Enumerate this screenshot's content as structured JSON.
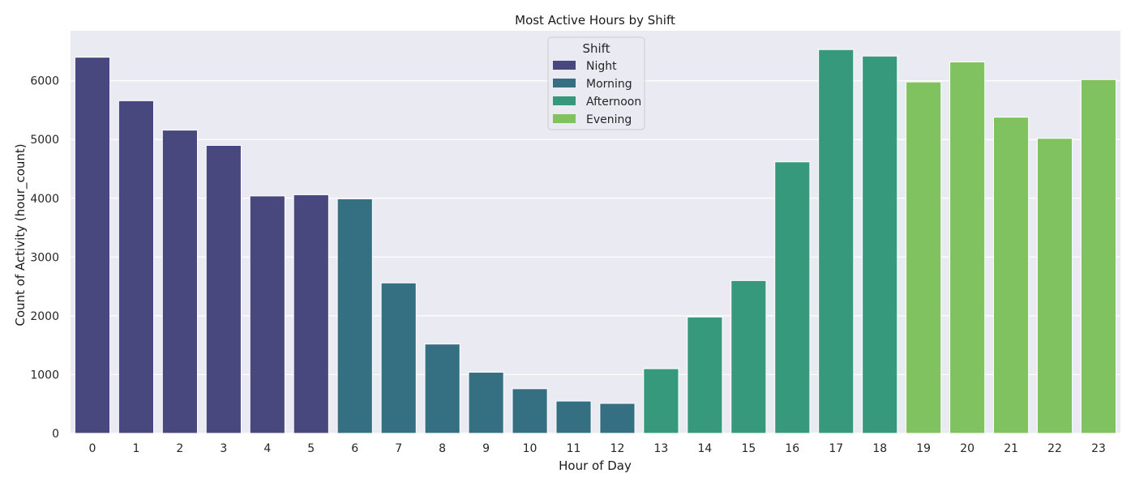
{
  "chart_data": {
    "type": "bar",
    "title": "Most Active Hours by Shift",
    "xlabel": "Hour of Day",
    "ylabel": "Count of Activity (hour_count)",
    "categories": [
      "0",
      "1",
      "2",
      "3",
      "4",
      "5",
      "6",
      "7",
      "8",
      "9",
      "10",
      "11",
      "12",
      "13",
      "14",
      "15",
      "16",
      "17",
      "18",
      "19",
      "20",
      "21",
      "22",
      "23"
    ],
    "values": [
      6400,
      5660,
      5160,
      4900,
      4040,
      4060,
      3990,
      2560,
      1520,
      1040,
      760,
      550,
      510,
      1100,
      1980,
      2600,
      4620,
      6530,
      6420,
      5980,
      6320,
      5380,
      5020,
      6020
    ],
    "shifts": [
      "Night",
      "Night",
      "Night",
      "Night",
      "Night",
      "Night",
      "Morning",
      "Morning",
      "Morning",
      "Morning",
      "Morning",
      "Morning",
      "Morning",
      "Afternoon",
      "Afternoon",
      "Afternoon",
      "Afternoon",
      "Afternoon",
      "Afternoon",
      "Evening",
      "Evening",
      "Evening",
      "Evening",
      "Evening"
    ],
    "ylim": [
      0,
      6850
    ],
    "yticks": [
      0,
      1000,
      2000,
      3000,
      4000,
      5000,
      6000
    ],
    "grid": true,
    "legend": {
      "title": "Shift",
      "placement": "top-center",
      "entries": [
        {
          "name": "Night",
          "color": "#48487f"
        },
        {
          "name": "Morning",
          "color": "#347082"
        },
        {
          "name": "Afternoon",
          "color": "#36997b"
        },
        {
          "name": "Evening",
          "color": "#7fc25f"
        }
      ]
    },
    "background_color": "#eaeaf2"
  }
}
